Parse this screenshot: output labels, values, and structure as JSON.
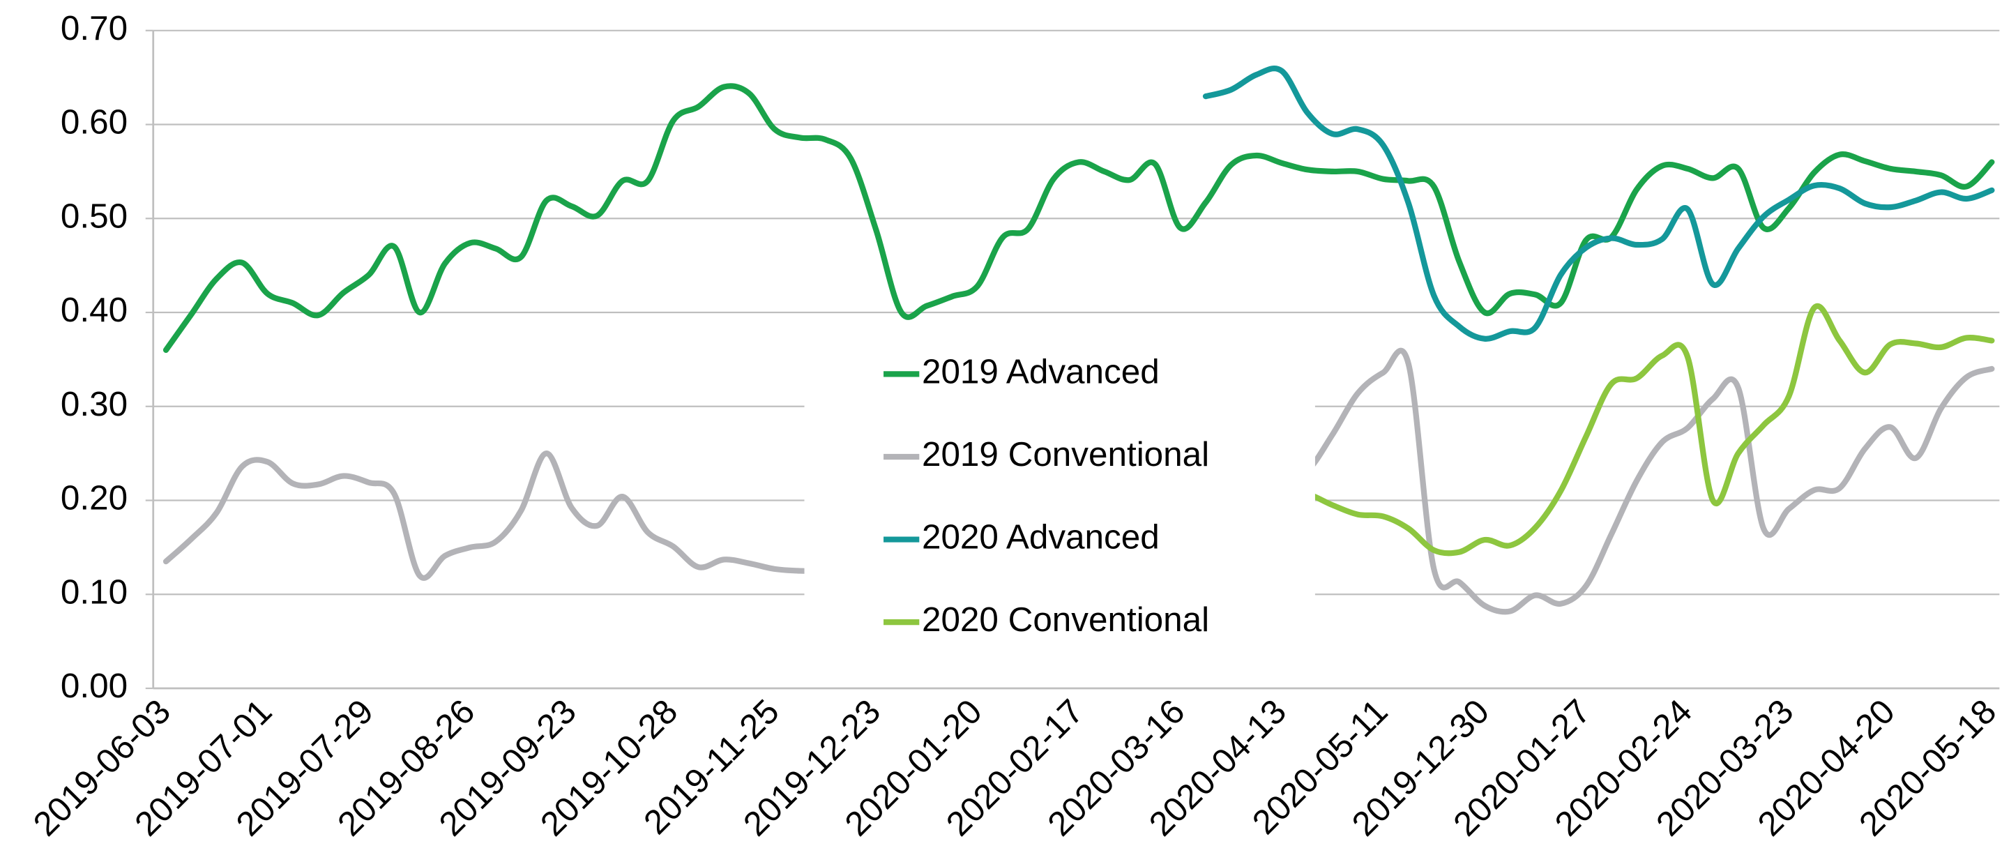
{
  "chart_data": {
    "type": "line",
    "categories": [
      "2019-06-03",
      null,
      null,
      null,
      "2019-07-01",
      null,
      null,
      null,
      "2019-07-29",
      null,
      null,
      null,
      "2019-08-26",
      null,
      null,
      null,
      "2019-09-23",
      null,
      null,
      null,
      "2019-10-28",
      null,
      null,
      null,
      "2019-11-25",
      null,
      null,
      null,
      "2019-12-23",
      null,
      null,
      null,
      "2020-01-20",
      null,
      null,
      null,
      "2020-02-17",
      null,
      null,
      null,
      "2020-03-16",
      null,
      null,
      null,
      "2020-04-13",
      null,
      null,
      null,
      "2020-05-11",
      null,
      null,
      null,
      "2019-12-30",
      null,
      null,
      null,
      "2020-01-27",
      null,
      null,
      null,
      "2020-02-24",
      null,
      null,
      null,
      "2020-03-23",
      null,
      null,
      null,
      "2020-04-20",
      null,
      null,
      null,
      "2020-05-18"
    ],
    "series": [
      {
        "name": "2019 Advanced",
        "color": "#1aa34a",
        "values": [
          0.36,
          0.398,
          0.436,
          0.453,
          0.42,
          0.41,
          0.397,
          0.421,
          0.44,
          0.47,
          0.4,
          0.452,
          0.474,
          0.468,
          0.459,
          0.519,
          0.513,
          0.503,
          0.54,
          0.54,
          0.604,
          0.619,
          0.64,
          0.633,
          0.595,
          0.586,
          0.584,
          0.564,
          0.488,
          0.4,
          0.407,
          0.417,
          0.428,
          0.48,
          0.489,
          0.542,
          0.56,
          0.55,
          0.541,
          0.558,
          0.49,
          0.517,
          0.557,
          0.567,
          0.559,
          0.552,
          0.55,
          0.55,
          0.542,
          0.54,
          0.534,
          0.454,
          0.4,
          0.42,
          0.419,
          0.41,
          0.477,
          0.48,
          0.531,
          0.556,
          0.553,
          0.543,
          0.553,
          0.49,
          0.511,
          0.549,
          0.568,
          0.561,
          0.553,
          0.55,
          0.546,
          0.534,
          0.56
        ]
      },
      {
        "name": "2019 Conventional",
        "color": "#b3b3b7",
        "values": [
          0.135,
          0.159,
          0.187,
          0.236,
          0.241,
          0.218,
          0.217,
          0.226,
          0.219,
          0.207,
          0.12,
          0.141,
          0.15,
          0.156,
          0.189,
          0.25,
          0.192,
          0.173,
          0.204,
          0.166,
          0.151,
          0.129,
          0.137,
          0.133,
          0.127,
          0.125,
          0.125,
          0.128,
          0.135,
          0.14,
          0.144,
          0.153,
          0.163,
          0.172,
          0.182,
          0.191,
          0.2,
          0.21,
          0.21,
          0.219,
          0.22,
          0.22,
          0.22,
          0.22,
          0.22,
          0.231,
          0.27,
          0.314,
          0.336,
          0.345,
          0.127,
          0.113,
          0.088,
          0.082,
          0.099,
          0.09,
          0.109,
          0.164,
          0.221,
          0.262,
          0.277,
          0.308,
          0.32,
          0.17,
          0.191,
          0.211,
          0.213,
          0.255,
          0.278,
          0.245,
          0.298,
          0.331,
          0.34
        ]
      },
      {
        "name": "2020 Advanced",
        "color": "#14989a",
        "values": [
          null,
          null,
          null,
          null,
          null,
          null,
          null,
          null,
          null,
          null,
          null,
          null,
          null,
          null,
          null,
          null,
          null,
          null,
          null,
          null,
          null,
          null,
          null,
          null,
          null,
          null,
          null,
          null,
          null,
          null,
          null,
          null,
          null,
          null,
          null,
          null,
          null,
          null,
          null,
          null,
          null,
          0.63,
          0.637,
          0.653,
          0.657,
          0.613,
          0.59,
          0.595,
          0.578,
          0.516,
          0.418,
          0.385,
          0.372,
          0.38,
          0.384,
          0.44,
          0.469,
          0.479,
          0.472,
          0.478,
          0.51,
          0.43,
          0.468,
          0.502,
          0.52,
          0.535,
          0.532,
          0.516,
          0.512,
          0.519,
          0.528,
          0.521,
          0.53
        ]
      },
      {
        "name": "2020 Conventional",
        "color": "#8dc63f",
        "values": [
          null,
          null,
          null,
          null,
          null,
          null,
          null,
          null,
          null,
          null,
          null,
          null,
          null,
          null,
          null,
          null,
          null,
          null,
          null,
          null,
          null,
          null,
          null,
          null,
          null,
          null,
          null,
          null,
          null,
          null,
          null,
          null,
          null,
          null,
          null,
          null,
          null,
          null,
          null,
          null,
          null,
          0.22,
          0.213,
          0.21,
          0.21,
          0.207,
          0.195,
          0.185,
          0.183,
          0.17,
          0.147,
          0.145,
          0.158,
          0.152,
          0.171,
          0.21,
          0.268,
          0.324,
          0.33,
          0.354,
          0.353,
          0.2,
          0.25,
          0.28,
          0.311,
          0.405,
          0.37,
          0.336,
          0.366,
          0.367,
          0.363,
          0.373,
          0.37
        ]
      }
    ],
    "ylim": [
      0,
      0.7
    ],
    "yticks": [
      {
        "value": 0,
        "label": "0.00"
      },
      {
        "value": 0.1,
        "label": "0.10"
      },
      {
        "value": 0.2,
        "label": "0.20"
      },
      {
        "value": 0.3,
        "label": "0.30"
      },
      {
        "value": 0.4,
        "label": "0.40"
      },
      {
        "value": 0.5,
        "label": "0.50"
      },
      {
        "value": 0.6,
        "label": "0.60"
      },
      {
        "value": 0.7,
        "label": "0.70"
      }
    ],
    "grid": true,
    "legend": "center"
  }
}
